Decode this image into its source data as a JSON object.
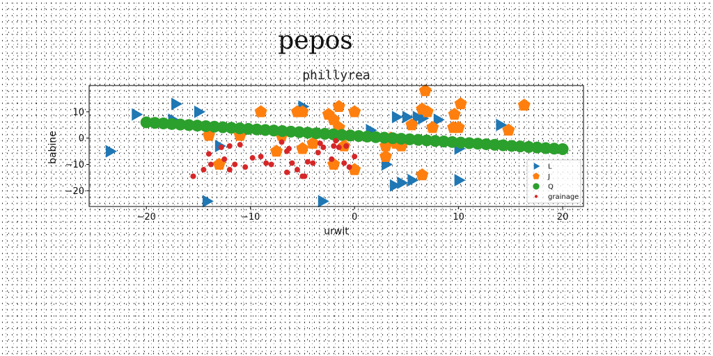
{
  "chart_data": {
    "type": "scatter",
    "suptitle": "pepos",
    "title": "phillyrea",
    "xlabel": "urwit",
    "ylabel": "babine",
    "xlim": [
      -25.5,
      22
    ],
    "ylim": [
      -26,
      20
    ],
    "xticks": [
      -20,
      -10,
      0,
      10,
      20
    ],
    "yticks": [
      -20,
      -10,
      0,
      10
    ],
    "xtick_labels": [
      "−20",
      "−10",
      "0",
      "10",
      "20"
    ],
    "ytick_labels": [
      "−20",
      "−10",
      "0",
      "10"
    ],
    "grid": false,
    "legend": {
      "placement": "lower-right"
    },
    "series": [
      {
        "name": "L",
        "marker": "triangle-right",
        "color": "#1f77b4",
        "points": [
          [
            -23.5,
            -5
          ],
          [
            -21,
            9
          ],
          [
            -17.2,
            13
          ],
          [
            -17.5,
            7
          ],
          [
            -15,
            10
          ],
          [
            -14.2,
            -24
          ],
          [
            -13,
            -3
          ],
          [
            -5,
            12
          ],
          [
            -3.1,
            -24
          ],
          [
            1.5,
            3
          ],
          [
            3,
            -10
          ],
          [
            3.8,
            -18
          ],
          [
            4,
            8
          ],
          [
            4.5,
            -17
          ],
          [
            5,
            8
          ],
          [
            5.5,
            -16
          ],
          [
            6,
            8
          ],
          [
            6.5,
            7.5
          ],
          [
            8,
            7
          ],
          [
            10,
            -4
          ],
          [
            10,
            -16
          ],
          [
            14,
            5
          ]
        ]
      },
      {
        "name": "J",
        "marker": "pentagon",
        "color": "#ff7f0e",
        "points": [
          [
            -14,
            1
          ],
          [
            -13,
            -10
          ],
          [
            -11,
            1
          ],
          [
            -9,
            10
          ],
          [
            -7.5,
            -5
          ],
          [
            -7,
            1
          ],
          [
            -5.5,
            10
          ],
          [
            -5,
            10
          ],
          [
            -5,
            -4
          ],
          [
            -4,
            -2
          ],
          [
            -2.5,
            9
          ],
          [
            -2,
            -10
          ],
          [
            -2,
            7
          ],
          [
            -1.5,
            12
          ],
          [
            -1.5,
            4
          ],
          [
            -1,
            -3
          ],
          [
            -0.5,
            1
          ],
          [
            0,
            10
          ],
          [
            0,
            -12
          ],
          [
            3,
            -3
          ],
          [
            3,
            -7
          ],
          [
            3.5,
            0
          ],
          [
            4,
            -2
          ],
          [
            4.5,
            -3
          ],
          [
            5.5,
            5
          ],
          [
            6.5,
            -14
          ],
          [
            6.5,
            11
          ],
          [
            6.8,
            18
          ],
          [
            7,
            10
          ],
          [
            7.5,
            4
          ],
          [
            9.5,
            4
          ],
          [
            9.6,
            9
          ],
          [
            10,
            4
          ],
          [
            10.2,
            13
          ],
          [
            14.8,
            3
          ],
          [
            16.3,
            12.5
          ]
        ]
      },
      {
        "name": "Q",
        "marker": "circle",
        "color": "#2ca02c",
        "x_range": [
          -20,
          20
        ],
        "y_range": [
          6,
          -4.2
        ],
        "count": 50
      },
      {
        "name": "grainage",
        "marker": "circle-small",
        "color": "#d62728",
        "points": [
          [
            -15.5,
            -14.5
          ],
          [
            -14.5,
            -12
          ],
          [
            -14,
            -6
          ],
          [
            -13.8,
            -10
          ],
          [
            -12.8,
            -3.5
          ],
          [
            -12.5,
            -8
          ],
          [
            -12,
            -3
          ],
          [
            -12,
            -12
          ],
          [
            -11.5,
            -10
          ],
          [
            -11,
            -2.5
          ],
          [
            -10.5,
            -11
          ],
          [
            -9.8,
            -7.5
          ],
          [
            -9,
            -7
          ],
          [
            -8.5,
            -9.5
          ],
          [
            -8,
            -10
          ],
          [
            -7,
            -1.5
          ],
          [
            -6.5,
            -5
          ],
          [
            -6.5,
            -13
          ],
          [
            -6.3,
            -4
          ],
          [
            -6,
            -9.5
          ],
          [
            -5.5,
            -12
          ],
          [
            -5,
            -14.5
          ],
          [
            -4.8,
            -14.5
          ],
          [
            -4.5,
            -9
          ],
          [
            -4,
            -9.5
          ],
          [
            -3.5,
            -5.5
          ],
          [
            -3.3,
            -2
          ],
          [
            -3,
            -3.5
          ],
          [
            -2.2,
            -8
          ],
          [
            -2,
            -3
          ],
          [
            -1.8,
            -1
          ],
          [
            -1.5,
            -3.5
          ],
          [
            -1,
            -9.5
          ],
          [
            -0.8,
            -3
          ],
          [
            -0.5,
            -11
          ],
          [
            0,
            -7
          ]
        ]
      }
    ]
  }
}
